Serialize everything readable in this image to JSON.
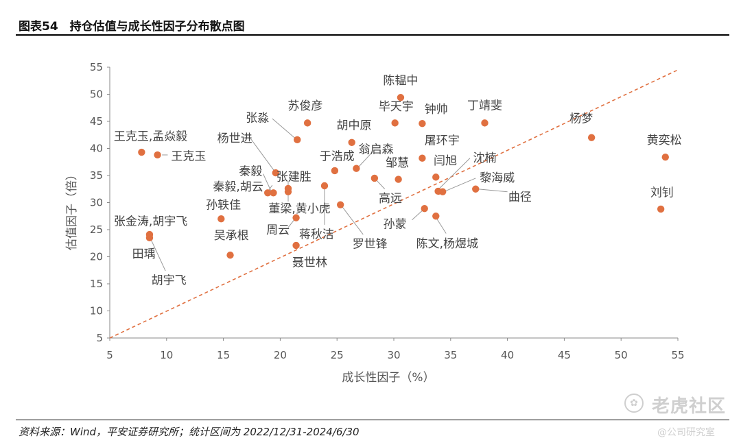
{
  "header": {
    "title": "图表54　持仓估值与成长性因子分布散点图"
  },
  "footer": {
    "source": "资料来源：Wind，平安证券研究所；统计区间为 2022/12/31-2024/6/30"
  },
  "watermark": {
    "icon": "paw-icon",
    "text": "老虎社区",
    "sub": "@公司研究室"
  },
  "chart_data": {
    "type": "scatter",
    "xlabel": "成长性因子（%）",
    "ylabel": "估值因子（倍）",
    "xlim": [
      5,
      55
    ],
    "ylim": [
      5,
      55
    ],
    "xticks": [
      5,
      10,
      15,
      20,
      25,
      30,
      35,
      40,
      45,
      50,
      55
    ],
    "yticks": [
      5,
      10,
      15,
      20,
      25,
      30,
      35,
      40,
      45,
      50,
      55
    ],
    "grid": false,
    "point_color": "#E07040",
    "trend_line": {
      "style": "dashed",
      "color": "#E07040",
      "from": [
        5,
        5
      ],
      "to": [
        55,
        54.5
      ]
    },
    "points": [
      {
        "x": 7.8,
        "y": 39.3
      },
      {
        "x": 9.2,
        "y": 38.8
      },
      {
        "x": 8.5,
        "y": 24.1
      },
      {
        "x": 8.5,
        "y": 23.5
      },
      {
        "x": 14.8,
        "y": 27.0
      },
      {
        "x": 15.6,
        "y": 20.3
      },
      {
        "x": 18.9,
        "y": 31.8
      },
      {
        "x": 19.4,
        "y": 31.8
      },
      {
        "x": 19.6,
        "y": 35.5
      },
      {
        "x": 20.7,
        "y": 32.6
      },
      {
        "x": 20.7,
        "y": 32.0
      },
      {
        "x": 21.4,
        "y": 27.2
      },
      {
        "x": 21.4,
        "y": 22.1
      },
      {
        "x": 21.5,
        "y": 41.6
      },
      {
        "x": 22.4,
        "y": 44.7
      },
      {
        "x": 23.9,
        "y": 33.1
      },
      {
        "x": 24.8,
        "y": 35.9
      },
      {
        "x": 25.3,
        "y": 29.6
      },
      {
        "x": 26.3,
        "y": 41.1
      },
      {
        "x": 26.7,
        "y": 36.3
      },
      {
        "x": 28.3,
        "y": 34.5
      },
      {
        "x": 30.1,
        "y": 44.7
      },
      {
        "x": 30.4,
        "y": 34.3
      },
      {
        "x": 30.6,
        "y": 49.4
      },
      {
        "x": 32.5,
        "y": 44.6
      },
      {
        "x": 32.5,
        "y": 38.2
      },
      {
        "x": 32.7,
        "y": 28.9
      },
      {
        "x": 33.7,
        "y": 34.7
      },
      {
        "x": 33.7,
        "y": 27.5
      },
      {
        "x": 33.9,
        "y": 32.1
      },
      {
        "x": 34.3,
        "y": 32.0
      },
      {
        "x": 37.2,
        "y": 32.5
      },
      {
        "x": 38.0,
        "y": 44.7
      },
      {
        "x": 47.4,
        "y": 42.0
      },
      {
        "x": 53.5,
        "y": 28.8
      },
      {
        "x": 53.9,
        "y": 38.4
      }
    ],
    "labels": [
      {
        "text": "陈韫中",
        "x": 30.6,
        "y": 52.6,
        "anchor": "middle",
        "from": null
      },
      {
        "text": "毕天宇",
        "x": 30.2,
        "y": 47.8,
        "anchor": "middle",
        "from": null
      },
      {
        "text": "钟帅",
        "x": 32.7,
        "y": 47.3,
        "anchor": "start",
        "from": null
      },
      {
        "text": "丁靖斐",
        "x": 38.0,
        "y": 48.0,
        "anchor": "middle",
        "from": null
      },
      {
        "text": "苏俊彦",
        "x": 22.2,
        "y": 47.9,
        "anchor": "middle",
        "from": null
      },
      {
        "text": "张淼",
        "x": 18.0,
        "y": 45.7,
        "anchor": "middle",
        "from": [
          19.3,
          45.5,
          21.3,
          41.9
        ]
      },
      {
        "text": "胡中原",
        "x": 26.5,
        "y": 44.3,
        "anchor": "middle",
        "from": null
      },
      {
        "text": "屠环宇",
        "x": 32.7,
        "y": 41.5,
        "anchor": "start",
        "from": null
      },
      {
        "text": "杨梦",
        "x": 46.5,
        "y": 45.6,
        "anchor": "middle",
        "from": null
      },
      {
        "text": "王克玉,孟焱毅",
        "x": 8.6,
        "y": 42.3,
        "anchor": "middle",
        "from": null
      },
      {
        "text": "杨世进",
        "x": 16.0,
        "y": 41.9,
        "anchor": "middle",
        "from": [
          17.4,
          41.8,
          19.5,
          35.8
        ]
      },
      {
        "text": "王克玉",
        "x": 10.4,
        "y": 38.6,
        "anchor": "start",
        "from": [
          9.6,
          38.8,
          10.1,
          38.8
        ]
      },
      {
        "text": "于浩成",
        "x": 25.0,
        "y": 38.6,
        "anchor": "middle",
        "from": null
      },
      {
        "text": "翁启森",
        "x": 26.9,
        "y": 39.9,
        "anchor": "start",
        "from": [
          28.1,
          39.3,
          26.9,
          36.6
        ]
      },
      {
        "text": "邹慧",
        "x": 30.3,
        "y": 37.4,
        "anchor": "middle",
        "from": null
      },
      {
        "text": "闫旭",
        "x": 33.5,
        "y": 37.8,
        "anchor": "start",
        "from": null
      },
      {
        "text": "沈楠",
        "x": 38.0,
        "y": 38.3,
        "anchor": "middle",
        "from": [
          36.7,
          38.2,
          34.0,
          32.6
        ]
      },
      {
        "text": "黄奕松",
        "x": 53.8,
        "y": 41.6,
        "anchor": "middle",
        "from": null
      },
      {
        "text": "张建胜",
        "x": 21.2,
        "y": 34.8,
        "anchor": "middle",
        "from": [
          20.7,
          33.9,
          20.7,
          33.2
        ]
      },
      {
        "text": "秦毅",
        "x": 17.4,
        "y": 35.8,
        "anchor": "middle",
        "from": [
          18.5,
          35.3,
          19.2,
          32.1
        ]
      },
      {
        "text": "黎海威",
        "x": 39.1,
        "y": 34.6,
        "anchor": "middle",
        "from": [
          37.2,
          34.5,
          34.5,
          32.1
        ]
      },
      {
        "text": "秦毅,胡云",
        "x": 16.3,
        "y": 33.0,
        "anchor": "middle",
        "from": [
          19.3,
          33.2,
          18.9,
          32.0
        ]
      },
      {
        "text": "高远",
        "x": 29.7,
        "y": 30.8,
        "anchor": "middle",
        "from": [
          29.2,
          32.5,
          28.4,
          34.3
        ]
      },
      {
        "text": "曲径",
        "x": 41.1,
        "y": 31.1,
        "anchor": "middle",
        "from": [
          37.4,
          32.5,
          40.0,
          32.0
        ]
      },
      {
        "text": "刘钊",
        "x": 53.6,
        "y": 31.9,
        "anchor": "middle",
        "from": null
      },
      {
        "text": "孙轶佳",
        "x": 15.0,
        "y": 29.6,
        "anchor": "middle",
        "from": null
      },
      {
        "text": "董梁,黄小虎",
        "x": 21.7,
        "y": 28.9,
        "anchor": "middle",
        "from": [
          20.7,
          30.2,
          20.7,
          31.8
        ]
      },
      {
        "text": "张金涛,胡宇飞",
        "x": 8.6,
        "y": 26.6,
        "anchor": "middle",
        "from": null
      },
      {
        "text": "孙蒙",
        "x": 30.1,
        "y": 26.1,
        "anchor": "middle",
        "from": [
          31.6,
          26.8,
          32.6,
          28.7
        ]
      },
      {
        "text": "周云",
        "x": 19.8,
        "y": 25.0,
        "anchor": "middle",
        "from": [
          20.7,
          25.4,
          21.3,
          27.0
        ]
      },
      {
        "text": "蒋秋洁",
        "x": 23.2,
        "y": 24.2,
        "anchor": "middle",
        "from": [
          23.9,
          25.9,
          23.9,
          32.9
        ]
      },
      {
        "text": "吴承根",
        "x": 15.7,
        "y": 24.0,
        "anchor": "middle",
        "from": null
      },
      {
        "text": "罗世锋",
        "x": 27.9,
        "y": 22.4,
        "anchor": "middle",
        "from": [
          27.3,
          24.1,
          25.4,
          29.4
        ]
      },
      {
        "text": "陈文,杨煜城",
        "x": 34.7,
        "y": 22.5,
        "anchor": "middle",
        "from": [
          34.6,
          24.3,
          33.7,
          27.3
        ]
      },
      {
        "text": "田瑀",
        "x": 8.0,
        "y": 20.6,
        "anchor": "middle",
        "from": null
      },
      {
        "text": "聂世林",
        "x": 22.6,
        "y": 19.0,
        "anchor": "middle",
        "from": null
      },
      {
        "text": "胡宇飞",
        "x": 10.2,
        "y": 15.7,
        "anchor": "middle",
        "from": [
          9.9,
          17.4,
          8.6,
          23.3
        ]
      }
    ]
  }
}
